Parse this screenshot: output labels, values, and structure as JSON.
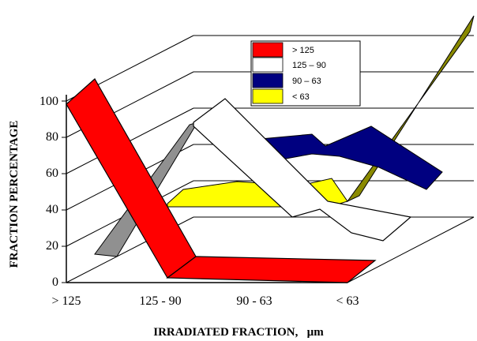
{
  "chart_data": {
    "type": "line",
    "style": "3d-ribbon",
    "title": "",
    "xlabel": "IRRADIATED FRACTION,   µm",
    "ylabel": "FRACTION PERCENTAGE",
    "categories": [
      "> 125",
      "125 - 90",
      "90 - 63",
      "< 63"
    ],
    "ylim": [
      0,
      100
    ],
    "yticks": [
      "0",
      "20",
      "40",
      "60",
      "80",
      "100"
    ],
    "grid": true,
    "legend_position": "top-center",
    "series": [
      {
        "name": "> 125",
        "color": "#ff0000",
        "values": [
          100,
          0,
          0,
          0
        ]
      },
      {
        "name": "125 – 90",
        "color": "#ffffff",
        "values": [
          10,
          80,
          30,
          0
        ]
      },
      {
        "name": "90 – 63",
        "color": "#000080",
        "values": [
          5,
          15,
          60,
          45
        ]
      },
      {
        "name": "< 63",
        "color": "#ffff00",
        "values": [
          3,
          3,
          5,
          100
        ]
      }
    ],
    "extra_colors": {
      "grey": "#909090",
      "olive": "#8a8a00"
    }
  }
}
